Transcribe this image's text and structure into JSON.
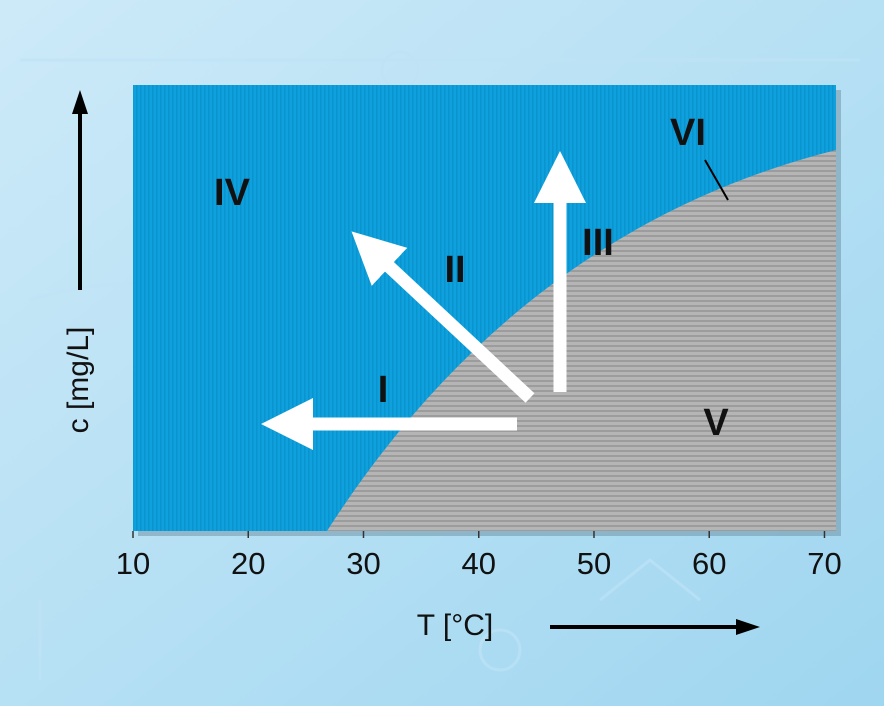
{
  "axes": {
    "x_label": "T [°C]",
    "y_label": "c [mg/L]",
    "xlim": [
      10,
      71
    ],
    "xticks": [
      10,
      20,
      30,
      40,
      50,
      60,
      70
    ]
  },
  "regions": {
    "iv": "IV",
    "ii": "II",
    "iii": "III",
    "i": "I",
    "v": "V",
    "vi": "VI"
  }
}
